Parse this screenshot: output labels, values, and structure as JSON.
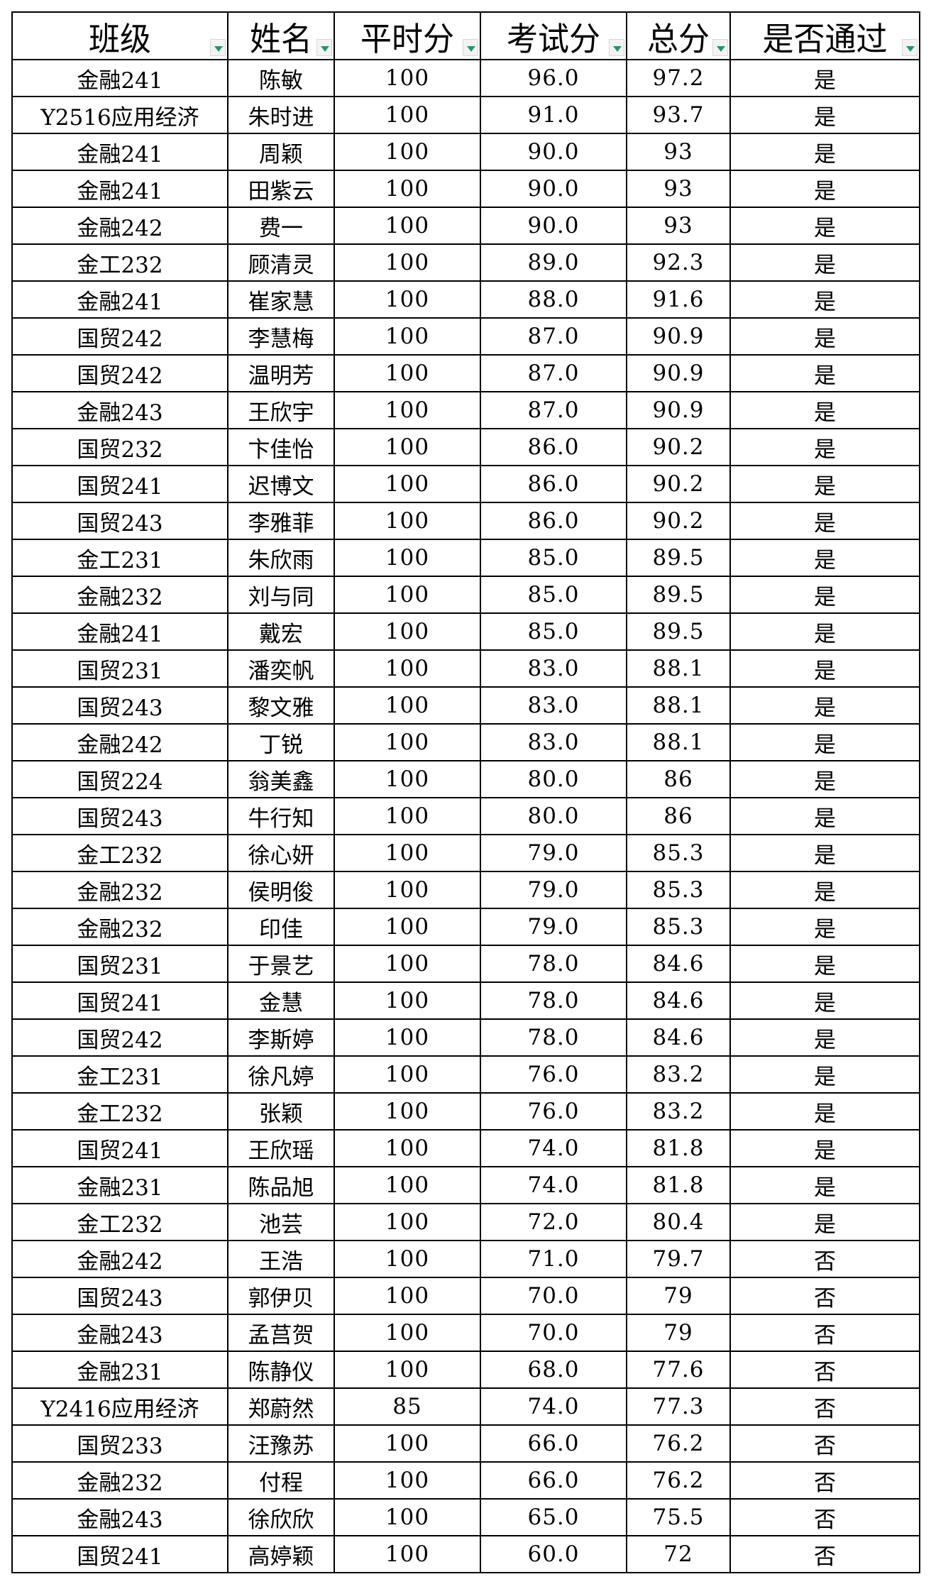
{
  "columns": [
    "班级",
    "姓名",
    "平时分",
    "考试分",
    "总分",
    "是否通过"
  ],
  "filter_icon_color": "#1a9b6c",
  "rows": [
    [
      "金融241",
      "陈敏",
      "100",
      "96.0",
      "97.2",
      "是"
    ],
    [
      "Y2516应用经济",
      "朱时进",
      "100",
      "91.0",
      "93.7",
      "是"
    ],
    [
      "金融241",
      "周颖",
      "100",
      "90.0",
      "93",
      "是"
    ],
    [
      "金融241",
      "田紫云",
      "100",
      "90.0",
      "93",
      "是"
    ],
    [
      "金融242",
      "费一",
      "100",
      "90.0",
      "93",
      "是"
    ],
    [
      "金工232",
      "顾清灵",
      "100",
      "89.0",
      "92.3",
      "是"
    ],
    [
      "金融241",
      "崔家慧",
      "100",
      "88.0",
      "91.6",
      "是"
    ],
    [
      "国贸242",
      "李慧梅",
      "100",
      "87.0",
      "90.9",
      "是"
    ],
    [
      "国贸242",
      "温明芳",
      "100",
      "87.0",
      "90.9",
      "是"
    ],
    [
      "金融243",
      "王欣宇",
      "100",
      "87.0",
      "90.9",
      "是"
    ],
    [
      "国贸232",
      "卞佳怡",
      "100",
      "86.0",
      "90.2",
      "是"
    ],
    [
      "国贸241",
      "迟博文",
      "100",
      "86.0",
      "90.2",
      "是"
    ],
    [
      "国贸243",
      "李雅菲",
      "100",
      "86.0",
      "90.2",
      "是"
    ],
    [
      "金工231",
      "朱欣雨",
      "100",
      "85.0",
      "89.5",
      "是"
    ],
    [
      "金融232",
      "刘与同",
      "100",
      "85.0",
      "89.5",
      "是"
    ],
    [
      "金融241",
      "戴宏",
      "100",
      "85.0",
      "89.5",
      "是"
    ],
    [
      "国贸231",
      "潘奕帆",
      "100",
      "83.0",
      "88.1",
      "是"
    ],
    [
      "国贸243",
      "黎文雅",
      "100",
      "83.0",
      "88.1",
      "是"
    ],
    [
      "金融242",
      "丁锐",
      "100",
      "83.0",
      "88.1",
      "是"
    ],
    [
      "国贸224",
      "翁美鑫",
      "100",
      "80.0",
      "86",
      "是"
    ],
    [
      "国贸243",
      "牛行知",
      "100",
      "80.0",
      "86",
      "是"
    ],
    [
      "金工232",
      "徐心妍",
      "100",
      "79.0",
      "85.3",
      "是"
    ],
    [
      "金融232",
      "侯明俊",
      "100",
      "79.0",
      "85.3",
      "是"
    ],
    [
      "金融232",
      "印佳",
      "100",
      "79.0",
      "85.3",
      "是"
    ],
    [
      "国贸231",
      "于景艺",
      "100",
      "78.0",
      "84.6",
      "是"
    ],
    [
      "国贸241",
      "金慧",
      "100",
      "78.0",
      "84.6",
      "是"
    ],
    [
      "国贸242",
      "李斯婷",
      "100",
      "78.0",
      "84.6",
      "是"
    ],
    [
      "金工231",
      "徐凡婷",
      "100",
      "76.0",
      "83.2",
      "是"
    ],
    [
      "金工232",
      "张颖",
      "100",
      "76.0",
      "83.2",
      "是"
    ],
    [
      "国贸241",
      "王欣瑶",
      "100",
      "74.0",
      "81.8",
      "是"
    ],
    [
      "金融231",
      "陈品旭",
      "100",
      "74.0",
      "81.8",
      "是"
    ],
    [
      "金工232",
      "池芸",
      "100",
      "72.0",
      "80.4",
      "是"
    ],
    [
      "金融242",
      "王浩",
      "100",
      "71.0",
      "79.7",
      "否"
    ],
    [
      "国贸243",
      "郭伊贝",
      "100",
      "70.0",
      "79",
      "否"
    ],
    [
      "金融243",
      "孟莒贺",
      "100",
      "70.0",
      "79",
      "否"
    ],
    [
      "金融231",
      "陈静仪",
      "100",
      "68.0",
      "77.6",
      "否"
    ],
    [
      "Y2416应用经济",
      "郑蔚然",
      "85",
      "74.0",
      "77.3",
      "否"
    ],
    [
      "国贸233",
      "汪豫苏",
      "100",
      "66.0",
      "76.2",
      "否"
    ],
    [
      "金融232",
      "付程",
      "100",
      "66.0",
      "76.2",
      "否"
    ],
    [
      "金融243",
      "徐欣欣",
      "100",
      "65.0",
      "75.5",
      "否"
    ],
    [
      "国贸241",
      "高婷颖",
      "100",
      "60.0",
      "72",
      "否"
    ]
  ]
}
